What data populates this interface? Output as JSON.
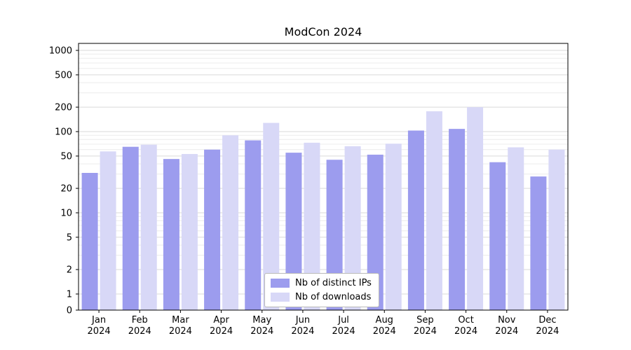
{
  "chart_data": {
    "type": "bar",
    "title": "ModCon 2024",
    "categories": [
      "Jan 2024",
      "Feb 2024",
      "Mar 2024",
      "Apr 2024",
      "May 2024",
      "Jun 2024",
      "Jul 2024",
      "Aug 2024",
      "Sep 2024",
      "Oct 2024",
      "Nov 2024",
      "Dec 2024"
    ],
    "series": [
      {
        "name": "Nb of distinct IPs",
        "color": "#9c9cee",
        "values": [
          31,
          65,
          46,
          60,
          78,
          55,
          45,
          52,
          103,
          108,
          42,
          28
        ]
      },
      {
        "name": "Nb of downloads",
        "color": "#d8d8f7",
        "values": [
          57,
          69,
          53,
          90,
          128,
          73,
          66,
          71,
          178,
          200,
          64,
          60
        ]
      }
    ],
    "y_ticks": [
      0,
      1,
      2,
      5,
      10,
      20,
      50,
      100,
      200,
      500,
      1000
    ],
    "y_scale": "symlog",
    "ylim": [
      0,
      1000
    ],
    "xlabel": "",
    "ylabel": "",
    "grid": true,
    "legend_position": "lower center",
    "colors": {
      "major_grid": "#d9d9d9",
      "minor_grid": "#ececec",
      "axis": "#000000",
      "background": "#ffffff"
    }
  }
}
